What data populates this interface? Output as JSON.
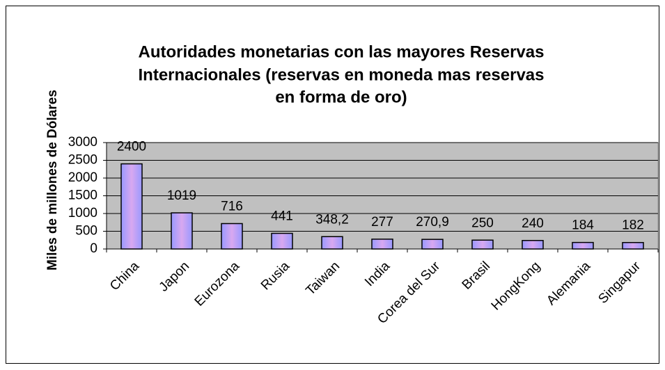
{
  "chart_data": {
    "type": "bar",
    "title": [
      "Autoridades monetarias con las mayores Reservas",
      "Internacionales (reservas en moneda mas reservas",
      "en forma de oro)"
    ],
    "y_label": "Miles de millones de Dólares",
    "categories": [
      "China",
      "Japon",
      "Eurozona",
      "Rusia",
      "Taiwan",
      "India",
      "Corea del Sur",
      "Brasil",
      "HongKong",
      "Alemania",
      "Singapur"
    ],
    "values": [
      2400,
      1019,
      716,
      441,
      348.2,
      277,
      270.9,
      250,
      240,
      184,
      182
    ],
    "value_labels": [
      "2400",
      "1019",
      "716",
      "441",
      "348,2",
      "277",
      "270,9",
      "250",
      "240",
      "184",
      "182"
    ],
    "color": "#a89cff",
    "ylim": [
      0,
      3000
    ],
    "yticks": [
      0,
      500,
      1000,
      1500,
      2000,
      2500,
      3000
    ],
    "grid": true
  }
}
